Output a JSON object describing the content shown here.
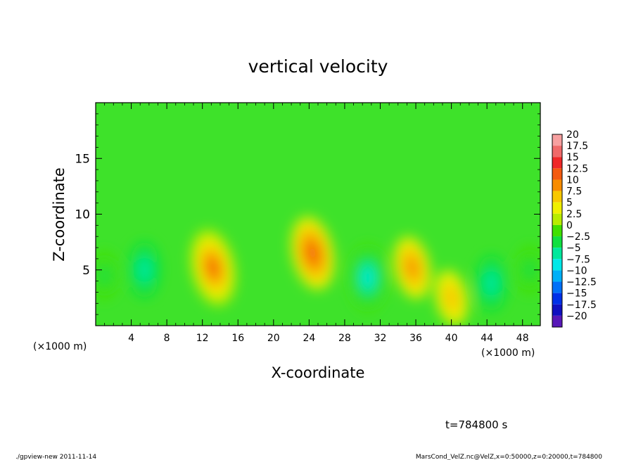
{
  "chart_data": {
    "type": "heatmap",
    "title": "vertical velocity",
    "xlabel": "X-coordinate",
    "ylabel": "Z-coordinate",
    "x_unit_left": "(×1000 m)",
    "x_unit_right": "(×1000 m)",
    "xlim": [
      0,
      50
    ],
    "ylim": [
      0,
      20
    ],
    "x_ticks": [
      "4",
      "8",
      "12",
      "16",
      "20",
      "24",
      "28",
      "32",
      "36",
      "40",
      "44",
      "48"
    ],
    "y_ticks": [
      "5",
      "10",
      "15"
    ],
    "colorbar": {
      "levels": [
        "20",
        "17.5",
        "15",
        "12.5",
        "10",
        "7.5",
        "5",
        "2.5",
        "0",
        "−2.5",
        "−5",
        "−7.5",
        "−10",
        "−12.5",
        "−15",
        "−17.5",
        "−20"
      ],
      "colors": [
        "#f7a0a0",
        "#f06a6a",
        "#f02828",
        "#f45a10",
        "#f88c00",
        "#f8c800",
        "#f0f000",
        "#b8ec00",
        "#40e000",
        "#10e040",
        "#00e89c",
        "#00e8e8",
        "#00b0f8",
        "#0070f8",
        "#0030e8",
        "#1010c0",
        "#5818b8"
      ]
    },
    "features": [
      {
        "x": 13.2,
        "z": 5.2,
        "w": 12
      },
      {
        "x": 24.4,
        "z": 6.5,
        "w": 11
      },
      {
        "x": 35.6,
        "z": 5.2,
        "w": 8
      },
      {
        "x": 40.0,
        "z": 2.5,
        "w": 6
      },
      {
        "x": 30.6,
        "z": 4.3,
        "w": -9
      },
      {
        "x": 5.5,
        "z": 5.0,
        "w": -6
      },
      {
        "x": 44.5,
        "z": 3.8,
        "w": -6
      },
      {
        "x": 1.0,
        "z": 4.5,
        "w": -4
      },
      {
        "x": 48.8,
        "z": 5.0,
        "w": -4
      }
    ],
    "annotation": "t=784800 s"
  },
  "footer": {
    "left": "./gpview-new  2011-11-14",
    "right": "MarsCond_VelZ.nc@VelZ,x=0:50000,z=0:20000,t=784800"
  }
}
